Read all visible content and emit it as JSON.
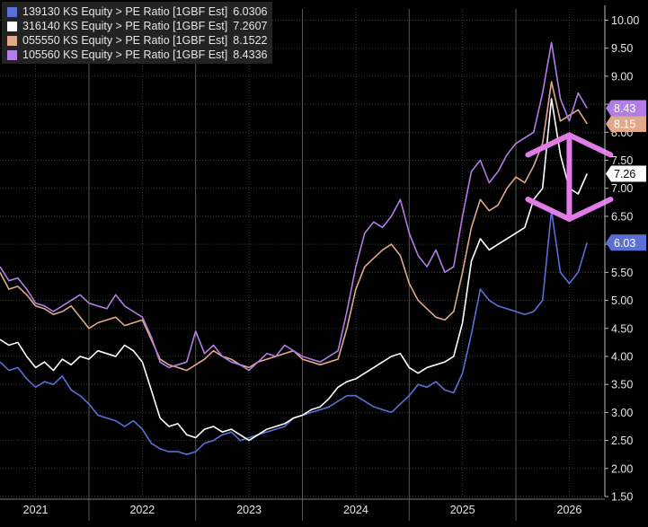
{
  "chart_data": {
    "type": "line",
    "title": "",
    "xlabel": "",
    "ylabel": "",
    "x_range": [
      "2020-09",
      "2026-05"
    ],
    "ylim": [
      1.5,
      10.2
    ],
    "y_ticks": [
      "1.50",
      "2.00",
      "2.50",
      "3.00",
      "3.50",
      "4.00",
      "4.50",
      "5.00",
      "5.50",
      "6.00",
      "6.50",
      "7.00",
      "7.50",
      "8.00",
      "8.50",
      "9.00",
      "9.50",
      "10.00"
    ],
    "x_ticks": [
      {
        "label": "2021",
        "date": "2021-01"
      },
      {
        "label": "2022",
        "date": "2022-01"
      },
      {
        "label": "2023",
        "date": "2023-01"
      },
      {
        "label": "2024",
        "date": "2024-01"
      },
      {
        "label": "2025",
        "date": "2025-01"
      },
      {
        "label": "2026",
        "date": "2026-01"
      }
    ],
    "year_separators": [
      "2021-07",
      "2022-07",
      "2023-07",
      "2024-07",
      "2025-07"
    ],
    "grid": true,
    "legend_position": "top-left",
    "series": [
      {
        "name": "139130 KS Equity > PE Ratio [1GBF Est]",
        "last_value": "6.0306",
        "axis_label": "6.03",
        "color": "#5b6fd6",
        "points": [
          [
            "2020-09",
            3.9
          ],
          [
            "2020-10",
            3.75
          ],
          [
            "2020-11",
            3.8
          ],
          [
            "2020-12",
            3.6
          ],
          [
            "2021-01",
            3.45
          ],
          [
            "2021-02",
            3.55
          ],
          [
            "2021-03",
            3.5
          ],
          [
            "2021-04",
            3.65
          ],
          [
            "2021-05",
            3.4
          ],
          [
            "2021-06",
            3.3
          ],
          [
            "2021-07",
            3.15
          ],
          [
            "2021-08",
            2.95
          ],
          [
            "2021-09",
            2.9
          ],
          [
            "2021-10",
            2.85
          ],
          [
            "2021-11",
            2.75
          ],
          [
            "2021-12",
            2.85
          ],
          [
            "2022-01",
            2.7
          ],
          [
            "2022-02",
            2.45
          ],
          [
            "2022-03",
            2.35
          ],
          [
            "2022-04",
            2.3
          ],
          [
            "2022-05",
            2.3
          ],
          [
            "2022-06",
            2.25
          ],
          [
            "2022-07",
            2.3
          ],
          [
            "2022-08",
            2.45
          ],
          [
            "2022-09",
            2.5
          ],
          [
            "2022-10",
            2.6
          ],
          [
            "2022-11",
            2.65
          ],
          [
            "2022-12",
            2.5
          ],
          [
            "2023-01",
            2.55
          ],
          [
            "2023-02",
            2.6
          ],
          [
            "2023-03",
            2.65
          ],
          [
            "2023-04",
            2.7
          ],
          [
            "2023-05",
            2.75
          ],
          [
            "2023-06",
            2.9
          ],
          [
            "2023-07",
            2.95
          ],
          [
            "2023-08",
            3.0
          ],
          [
            "2023-09",
            3.05
          ],
          [
            "2023-10",
            3.1
          ],
          [
            "2023-11",
            3.2
          ],
          [
            "2023-12",
            3.3
          ],
          [
            "2024-01",
            3.3
          ],
          [
            "2024-02",
            3.2
          ],
          [
            "2024-03",
            3.1
          ],
          [
            "2024-04",
            3.05
          ],
          [
            "2024-05",
            3.0
          ],
          [
            "2024-06",
            3.15
          ],
          [
            "2024-07",
            3.3
          ],
          [
            "2024-08",
            3.5
          ],
          [
            "2024-09",
            3.45
          ],
          [
            "2024-10",
            3.55
          ],
          [
            "2024-11",
            3.4
          ],
          [
            "2024-12",
            3.35
          ],
          [
            "2025-01",
            3.7
          ],
          [
            "2025-02",
            4.4
          ],
          [
            "2025-03",
            5.2
          ],
          [
            "2025-04",
            5.0
          ],
          [
            "2025-05",
            4.9
          ],
          [
            "2025-06",
            4.85
          ],
          [
            "2025-07",
            4.8
          ],
          [
            "2025-08",
            4.75
          ],
          [
            "2025-09",
            4.8
          ],
          [
            "2025-10",
            5.0
          ],
          [
            "2025-11",
            6.6
          ],
          [
            "2025-12",
            5.5
          ],
          [
            "2026-01",
            5.3
          ],
          [
            "2026-02",
            5.5
          ],
          [
            "2026-03",
            6.03
          ]
        ]
      },
      {
        "name": "316140 KS Equity > PE Ratio [1GBF Est]",
        "last_value": "7.2607",
        "axis_label": "7.26",
        "color": "#ffffff",
        "points": [
          [
            "2020-09",
            4.3
          ],
          [
            "2020-10",
            4.2
          ],
          [
            "2020-11",
            4.25
          ],
          [
            "2020-12",
            4.0
          ],
          [
            "2021-01",
            3.8
          ],
          [
            "2021-02",
            3.9
          ],
          [
            "2021-03",
            3.75
          ],
          [
            "2021-04",
            3.95
          ],
          [
            "2021-05",
            3.85
          ],
          [
            "2021-06",
            4.0
          ],
          [
            "2021-07",
            3.95
          ],
          [
            "2021-08",
            4.1
          ],
          [
            "2021-09",
            4.05
          ],
          [
            "2021-10",
            4.0
          ],
          [
            "2021-11",
            4.2
          ],
          [
            "2021-12",
            4.1
          ],
          [
            "2022-01",
            3.9
          ],
          [
            "2022-02",
            3.4
          ],
          [
            "2022-03",
            2.9
          ],
          [
            "2022-04",
            2.75
          ],
          [
            "2022-05",
            2.8
          ],
          [
            "2022-06",
            2.6
          ],
          [
            "2022-07",
            2.55
          ],
          [
            "2022-08",
            2.7
          ],
          [
            "2022-09",
            2.75
          ],
          [
            "2022-10",
            2.65
          ],
          [
            "2022-11",
            2.7
          ],
          [
            "2022-12",
            2.6
          ],
          [
            "2023-01",
            2.5
          ],
          [
            "2023-02",
            2.6
          ],
          [
            "2023-03",
            2.7
          ],
          [
            "2023-04",
            2.75
          ],
          [
            "2023-05",
            2.8
          ],
          [
            "2023-06",
            2.9
          ],
          [
            "2023-07",
            2.95
          ],
          [
            "2023-08",
            3.05
          ],
          [
            "2023-09",
            3.1
          ],
          [
            "2023-10",
            3.25
          ],
          [
            "2023-11",
            3.45
          ],
          [
            "2023-12",
            3.55
          ],
          [
            "2024-01",
            3.6
          ],
          [
            "2024-02",
            3.7
          ],
          [
            "2024-03",
            3.8
          ],
          [
            "2024-04",
            3.9
          ],
          [
            "2024-05",
            4.0
          ],
          [
            "2024-06",
            4.05
          ],
          [
            "2024-07",
            3.8
          ],
          [
            "2024-08",
            3.7
          ],
          [
            "2024-09",
            3.8
          ],
          [
            "2024-10",
            3.85
          ],
          [
            "2024-11",
            3.9
          ],
          [
            "2024-12",
            4.0
          ],
          [
            "2025-01",
            4.6
          ],
          [
            "2025-02",
            5.7
          ],
          [
            "2025-03",
            6.1
          ],
          [
            "2025-04",
            5.9
          ],
          [
            "2025-05",
            6.0
          ],
          [
            "2025-06",
            6.1
          ],
          [
            "2025-07",
            6.2
          ],
          [
            "2025-08",
            6.3
          ],
          [
            "2025-09",
            6.8
          ],
          [
            "2025-10",
            7.0
          ],
          [
            "2025-11",
            8.6
          ],
          [
            "2025-12",
            7.6
          ],
          [
            "2026-01",
            7.0
          ],
          [
            "2026-02",
            6.9
          ],
          [
            "2026-03",
            7.26
          ]
        ]
      },
      {
        "name": "055550 KS Equity > PE Ratio [1GBF Est]",
        "last_value": "8.1522",
        "axis_label": "8.15",
        "color": "#e0a98a",
        "points": [
          [
            "2020-09",
            5.5
          ],
          [
            "2020-10",
            5.2
          ],
          [
            "2020-11",
            5.25
          ],
          [
            "2020-12",
            5.1
          ],
          [
            "2021-01",
            4.9
          ],
          [
            "2021-02",
            4.85
          ],
          [
            "2021-03",
            4.75
          ],
          [
            "2021-04",
            4.8
          ],
          [
            "2021-05",
            4.9
          ],
          [
            "2021-06",
            4.7
          ],
          [
            "2021-07",
            4.5
          ],
          [
            "2021-08",
            4.6
          ],
          [
            "2021-09",
            4.65
          ],
          [
            "2021-10",
            4.7
          ],
          [
            "2021-11",
            4.55
          ],
          [
            "2021-12",
            4.6
          ],
          [
            "2022-01",
            4.65
          ],
          [
            "2022-02",
            4.3
          ],
          [
            "2022-03",
            3.95
          ],
          [
            "2022-04",
            3.85
          ],
          [
            "2022-05",
            3.8
          ],
          [
            "2022-06",
            3.75
          ],
          [
            "2022-07",
            3.85
          ],
          [
            "2022-08",
            3.95
          ],
          [
            "2022-09",
            4.1
          ],
          [
            "2022-10",
            4.0
          ],
          [
            "2022-11",
            3.95
          ],
          [
            "2022-12",
            3.85
          ],
          [
            "2023-01",
            3.8
          ],
          [
            "2023-02",
            3.9
          ],
          [
            "2023-03",
            3.95
          ],
          [
            "2023-04",
            4.0
          ],
          [
            "2023-05",
            4.05
          ],
          [
            "2023-06",
            4.1
          ],
          [
            "2023-07",
            3.95
          ],
          [
            "2023-08",
            3.9
          ],
          [
            "2023-09",
            3.85
          ],
          [
            "2023-10",
            3.9
          ],
          [
            "2023-11",
            3.95
          ],
          [
            "2023-12",
            4.5
          ],
          [
            "2024-01",
            5.2
          ],
          [
            "2024-02",
            5.6
          ],
          [
            "2024-03",
            5.75
          ],
          [
            "2024-04",
            5.9
          ],
          [
            "2024-05",
            6.0
          ],
          [
            "2024-06",
            5.8
          ],
          [
            "2024-07",
            5.3
          ],
          [
            "2024-08",
            5.0
          ],
          [
            "2024-09",
            4.85
          ],
          [
            "2024-10",
            4.7
          ],
          [
            "2024-11",
            4.65
          ],
          [
            "2024-12",
            4.8
          ],
          [
            "2025-01",
            5.5
          ],
          [
            "2025-02",
            6.3
          ],
          [
            "2025-03",
            6.8
          ],
          [
            "2025-04",
            6.6
          ],
          [
            "2025-05",
            6.7
          ],
          [
            "2025-06",
            7.0
          ],
          [
            "2025-07",
            7.2
          ],
          [
            "2025-08",
            7.1
          ],
          [
            "2025-09",
            7.4
          ],
          [
            "2025-10",
            7.8
          ],
          [
            "2025-11",
            8.9
          ],
          [
            "2025-12",
            8.2
          ],
          [
            "2026-01",
            8.3
          ],
          [
            "2026-02",
            8.4
          ],
          [
            "2026-03",
            8.15
          ]
        ]
      },
      {
        "name": "105560 KS Equity > PE Ratio [1GBF Est]",
        "last_value": "8.4336",
        "axis_label": "8.43",
        "color": "#b07ee6",
        "points": [
          [
            "2020-09",
            5.6
          ],
          [
            "2020-10",
            5.35
          ],
          [
            "2020-11",
            5.4
          ],
          [
            "2020-12",
            5.2
          ],
          [
            "2021-01",
            4.95
          ],
          [
            "2021-02",
            4.9
          ],
          [
            "2021-03",
            4.8
          ],
          [
            "2021-04",
            4.9
          ],
          [
            "2021-05",
            5.0
          ],
          [
            "2021-06",
            5.1
          ],
          [
            "2021-07",
            4.95
          ],
          [
            "2021-08",
            4.9
          ],
          [
            "2021-09",
            4.85
          ],
          [
            "2021-10",
            5.1
          ],
          [
            "2021-11",
            4.9
          ],
          [
            "2021-12",
            4.8
          ],
          [
            "2022-01",
            4.7
          ],
          [
            "2022-02",
            4.35
          ],
          [
            "2022-03",
            3.9
          ],
          [
            "2022-04",
            3.8
          ],
          [
            "2022-05",
            3.85
          ],
          [
            "2022-06",
            3.9
          ],
          [
            "2022-07",
            4.45
          ],
          [
            "2022-08",
            4.05
          ],
          [
            "2022-09",
            4.2
          ],
          [
            "2022-10",
            4.0
          ],
          [
            "2022-11",
            3.9
          ],
          [
            "2022-12",
            3.85
          ],
          [
            "2023-01",
            3.75
          ],
          [
            "2023-02",
            3.9
          ],
          [
            "2023-03",
            4.05
          ],
          [
            "2023-04",
            4.0
          ],
          [
            "2023-05",
            4.2
          ],
          [
            "2023-06",
            4.1
          ],
          [
            "2023-07",
            4.0
          ],
          [
            "2023-08",
            3.95
          ],
          [
            "2023-09",
            3.9
          ],
          [
            "2023-10",
            4.0
          ],
          [
            "2023-11",
            4.1
          ],
          [
            "2023-12",
            4.8
          ],
          [
            "2024-01",
            5.6
          ],
          [
            "2024-02",
            6.2
          ],
          [
            "2024-03",
            6.4
          ],
          [
            "2024-04",
            6.3
          ],
          [
            "2024-05",
            6.5
          ],
          [
            "2024-06",
            6.8
          ],
          [
            "2024-07",
            6.2
          ],
          [
            "2024-08",
            5.8
          ],
          [
            "2024-09",
            5.6
          ],
          [
            "2024-10",
            5.9
          ],
          [
            "2024-11",
            5.5
          ],
          [
            "2024-12",
            5.6
          ],
          [
            "2025-01",
            6.5
          ],
          [
            "2025-02",
            7.3
          ],
          [
            "2025-03",
            7.5
          ],
          [
            "2025-04",
            7.1
          ],
          [
            "2025-05",
            7.3
          ],
          [
            "2025-06",
            7.6
          ],
          [
            "2025-07",
            7.8
          ],
          [
            "2025-08",
            7.9
          ],
          [
            "2025-09",
            8.0
          ],
          [
            "2025-10",
            8.7
          ],
          [
            "2025-11",
            9.6
          ],
          [
            "2025-12",
            8.6
          ],
          [
            "2026-01",
            8.2
          ],
          [
            "2026-02",
            8.7
          ],
          [
            "2026-03",
            8.43
          ]
        ]
      }
    ],
    "annotation": {
      "type": "double-headed-arrow",
      "color": "#e07be8",
      "from": [
        "2026-01",
        7.95
      ],
      "to": [
        "2026-01",
        6.45
      ]
    }
  }
}
